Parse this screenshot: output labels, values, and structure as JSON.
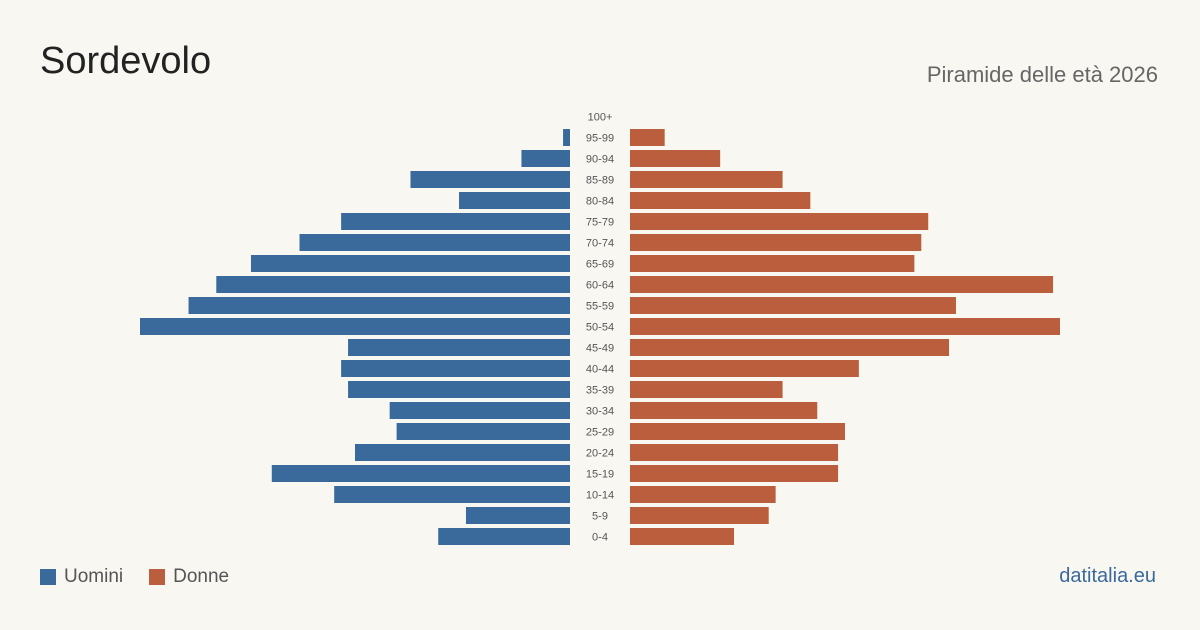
{
  "title": "Sordevolo",
  "subtitle": "Piramide delle età 2026",
  "brand": "datitalia.eu",
  "legend": {
    "men": "Uomini",
    "women": "Donne"
  },
  "colors": {
    "men": "#3a6a9b",
    "women": "#bb5e3d",
    "brand": "#3a6a9b"
  },
  "chart_data": {
    "type": "bar",
    "orientation": "horizontal-pyramid",
    "categories": [
      "100+",
      "95-99",
      "90-94",
      "85-89",
      "80-84",
      "75-79",
      "70-74",
      "65-69",
      "60-64",
      "55-59",
      "50-54",
      "45-49",
      "40-44",
      "35-39",
      "30-34",
      "25-29",
      "20-24",
      "15-19",
      "10-14",
      "5-9",
      "0-4"
    ],
    "series": [
      {
        "name": "Uomini",
        "values": [
          0,
          1,
          7,
          23,
          16,
          33,
          39,
          46,
          51,
          55,
          62,
          32,
          33,
          32,
          26,
          25,
          31,
          43,
          34,
          15,
          19
        ]
      },
      {
        "name": "Donne",
        "values": [
          0,
          5,
          13,
          22,
          26,
          43,
          42,
          41,
          61,
          47,
          62,
          46,
          33,
          22,
          27,
          31,
          30,
          30,
          21,
          20,
          15
        ]
      }
    ]
  }
}
